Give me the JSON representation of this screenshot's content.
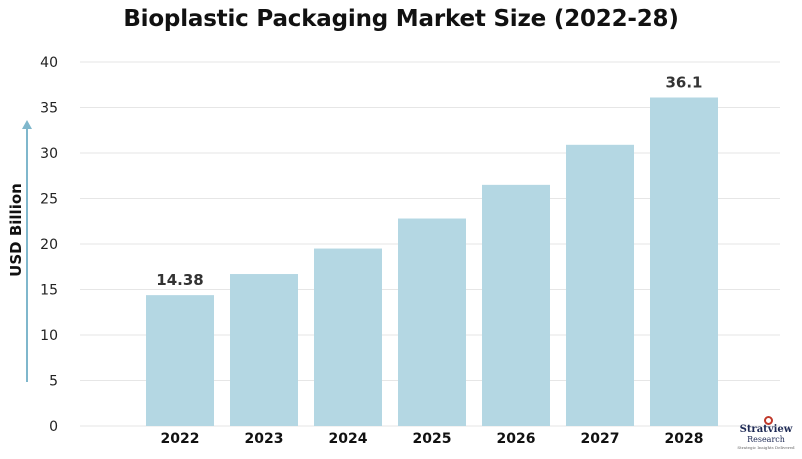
{
  "chart_data": {
    "type": "bar",
    "title": "Bioplastic Packaging Market Size (2022-28)",
    "xlabel": "",
    "ylabel": "USD Billion",
    "categories": [
      "2022",
      "2023",
      "2024",
      "2025",
      "2026",
      "2027",
      "2028"
    ],
    "values": [
      14.38,
      16.7,
      19.5,
      22.8,
      26.5,
      30.9,
      36.1
    ],
    "data_labels": [
      "14.38",
      "",
      "",
      "",
      "",
      "",
      "36.1"
    ],
    "ylim": [
      0,
      40
    ],
    "yticks": [
      0,
      5,
      10,
      15,
      20,
      25,
      30,
      35,
      40
    ],
    "grid": true,
    "legend": "none",
    "colors": {
      "bar": "#b4d7e3",
      "axis_arrow": "#7fb7cc"
    }
  },
  "logo": {
    "name": "Stratview",
    "sub": "Research",
    "tagline": "Strategic Insights Delivered"
  }
}
